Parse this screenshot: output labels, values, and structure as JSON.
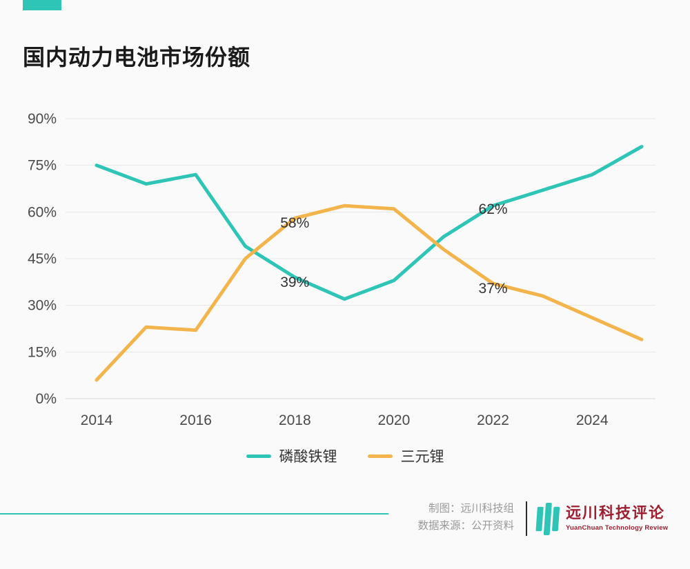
{
  "title": "国内动力电池市场份额",
  "colors": {
    "accent": "#2ec4b6",
    "series_lfp": "#2ec4b6",
    "series_ternary": "#f3b44c",
    "logo_red": "#9e1f30",
    "axis_text": "#4a4a4a",
    "grid": "#e6e6e6"
  },
  "legend": {
    "items": [
      {
        "label": "磷酸铁锂",
        "color": "#2ec4b6"
      },
      {
        "label": "三元锂",
        "color": "#f3b44c"
      }
    ]
  },
  "footer": {
    "credit_line1": "制图：远川科技组",
    "credit_line2": "数据来源：公开资料",
    "logo_cn": "远川科技评论",
    "logo_en": "YuanChuan Technology Review"
  },
  "chart_data": {
    "type": "line",
    "title": "国内动力电池市场份额",
    "x": [
      2014,
      2015,
      2016,
      2017,
      2018,
      2019,
      2020,
      2021,
      2022,
      2023,
      2024,
      2025
    ],
    "x_ticks": [
      2014,
      2016,
      2018,
      2020,
      2022,
      2024
    ],
    "y_ticks": [
      0,
      15,
      30,
      45,
      60,
      75,
      90
    ],
    "y_tick_suffix": "%",
    "ylim": [
      0,
      90
    ],
    "grid": true,
    "legend_position": "bottom",
    "series": [
      {
        "name": "磷酸铁锂",
        "color": "#2ec4b6",
        "values": [
          75,
          69,
          72,
          49,
          39,
          32,
          38,
          52,
          62,
          67,
          72,
          81
        ]
      },
      {
        "name": "三元锂",
        "color": "#f3b44c",
        "values": [
          6,
          23,
          22,
          45,
          58,
          62,
          61,
          48,
          37,
          33,
          26,
          19
        ]
      }
    ],
    "annotations": [
      {
        "text": "58%",
        "x": 2018,
        "y": 56.5
      },
      {
        "text": "39%",
        "x": 2018,
        "y": 37.5
      },
      {
        "text": "62%",
        "x": 2022,
        "y": 61
      },
      {
        "text": "37%",
        "x": 2022,
        "y": 35.5
      }
    ]
  }
}
